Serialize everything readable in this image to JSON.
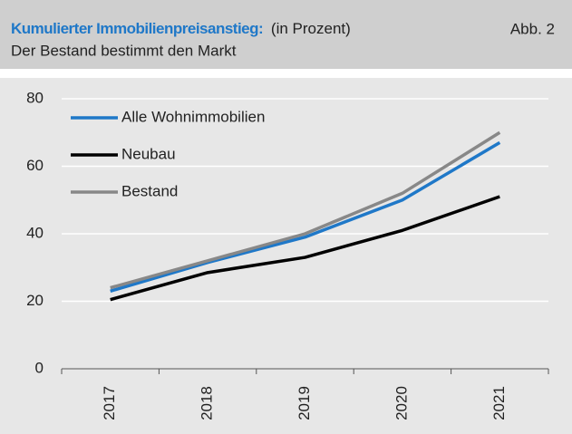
{
  "chart_data": {
    "type": "line",
    "title": "Kumulierter Immobilienpreisanstieg:",
    "unit": "(in Prozent)",
    "figure_label": "Abb. 2",
    "subtitle": "Der Bestand bestimmt  den Markt",
    "categories": [
      "2017",
      "2018",
      "2019",
      "2020",
      "2021"
    ],
    "series": [
      {
        "name": "Alle Wohnimmobilien",
        "color": "#1f78c8",
        "values": [
          23,
          31.5,
          39,
          50,
          67
        ]
      },
      {
        "name": "Neubau",
        "color": "#000000",
        "values": [
          20.5,
          28.5,
          33,
          41,
          51
        ]
      },
      {
        "name": "Bestand",
        "color": "#888888",
        "values": [
          24,
          32,
          40,
          52,
          70
        ]
      }
    ],
    "ylim": [
      0,
      80
    ],
    "yticks": [
      0,
      20,
      40,
      60,
      80
    ],
    "grid": true,
    "legend": "top-left"
  }
}
